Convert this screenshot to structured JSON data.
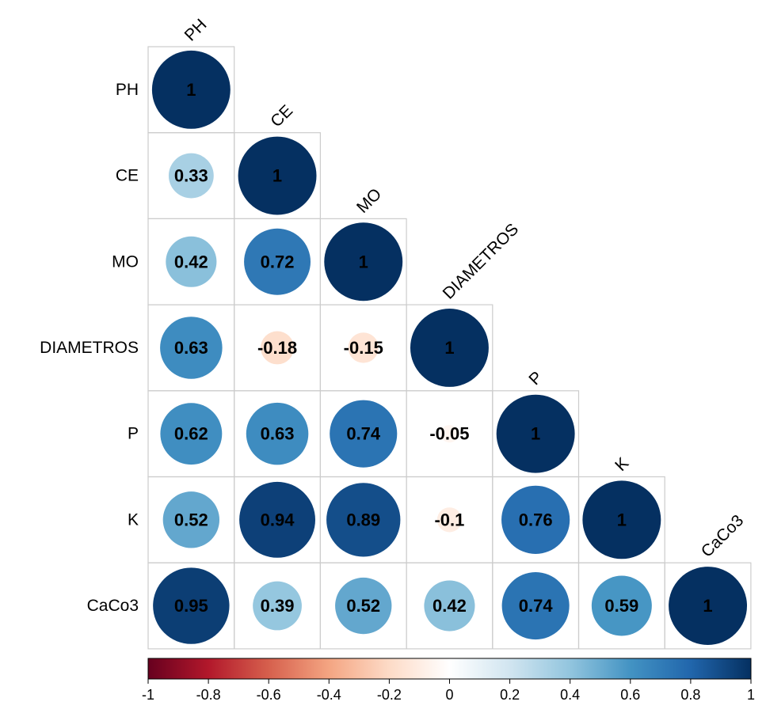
{
  "chart_data": {
    "type": "heatmap",
    "variables": [
      "PH",
      "CE",
      "MO",
      "DIAMETROS",
      "P",
      "K",
      "CaCo3"
    ],
    "matrix": [
      [
        1,
        null,
        null,
        null,
        null,
        null,
        null
      ],
      [
        0.33,
        1,
        null,
        null,
        null,
        null,
        null
      ],
      [
        0.42,
        0.72,
        1,
        null,
        null,
        null,
        null
      ],
      [
        0.63,
        -0.18,
        -0.15,
        1,
        null,
        null,
        null
      ],
      [
        0.62,
        0.63,
        0.74,
        -0.05,
        1,
        null,
        null
      ],
      [
        0.52,
        0.94,
        0.89,
        -0.1,
        0.76,
        1,
        null
      ],
      [
        0.95,
        0.39,
        0.52,
        0.42,
        0.74,
        0.59,
        1
      ]
    ],
    "labels": [
      [
        "1",
        "",
        "",
        "",
        "",
        "",
        ""
      ],
      [
        "0.33",
        "1",
        "",
        "",
        "",
        "",
        ""
      ],
      [
        "0.42",
        "0.72",
        "1",
        "",
        "",
        "",
        ""
      ],
      [
        "0.63",
        "-0.18",
        "-0.15",
        "1",
        "",
        "",
        ""
      ],
      [
        "0.62",
        "0.63",
        "0.74",
        "-0.05",
        "1",
        "",
        ""
      ],
      [
        "0.52",
        "0.94",
        "0.89",
        "-0.1",
        "0.76",
        "1",
        ""
      ],
      [
        "0.95",
        "0.39",
        "0.52",
        "0.42",
        "0.74",
        "0.59",
        "1"
      ]
    ],
    "triangle": "lower",
    "marker": "circle",
    "color_range": [
      -1,
      1
    ],
    "colorbar": {
      "ticks": [
        -1,
        -0.8,
        -0.6,
        -0.4,
        -0.2,
        0,
        0.2,
        0.4,
        0.6,
        0.8,
        1
      ],
      "tick_labels": [
        "-1",
        "-0.8",
        "-0.6",
        "-0.4",
        "-0.2",
        "0",
        "0.2",
        "0.4",
        "0.6",
        "0.8",
        "1"
      ],
      "placement": "bottom"
    },
    "colors": [
      "#67001F",
      "#B2182B",
      "#D6604D",
      "#F4A582",
      "#FDDBC7",
      "#FFFFFF",
      "#D1E5F0",
      "#92C5DE",
      "#4393C3",
      "#2166AC",
      "#053061"
    ],
    "title": "",
    "xlabel": "",
    "ylabel": ""
  }
}
